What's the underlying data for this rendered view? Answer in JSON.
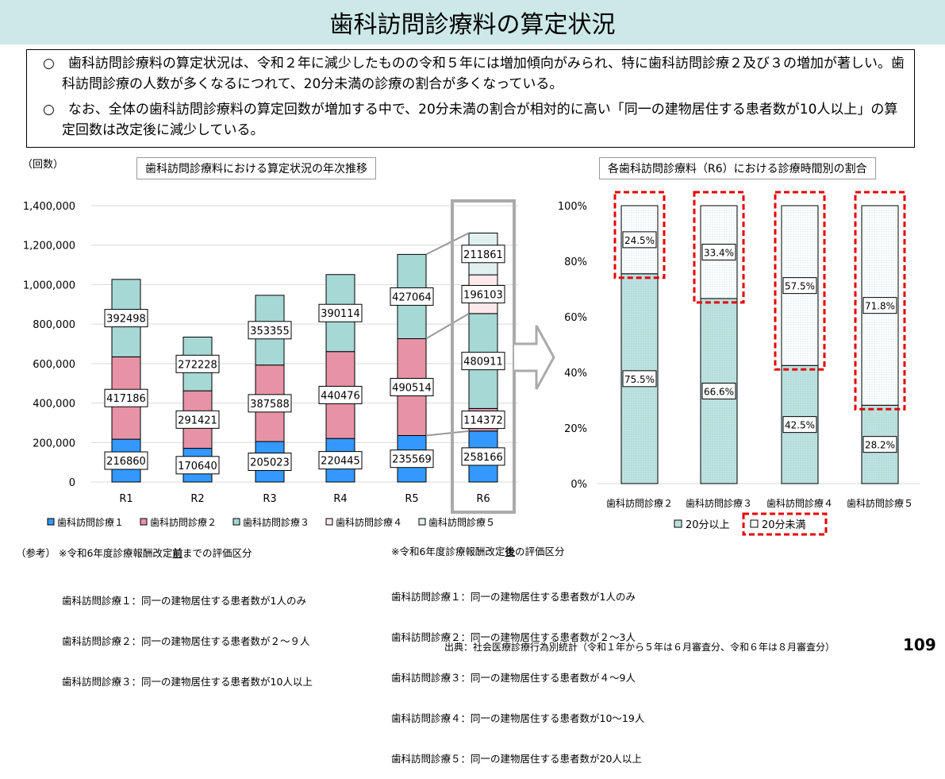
{
  "title": "歯科訪問診療料の算定状況",
  "summary": [
    "○　歯科訪問診療料の算定状況は、令和２年に減少したものの令和５年には増加傾向がみられ、特に歯科訪問診療２及び３の増加が著しい。歯科訪問診療の人数が多くなるにつれて、20分未満の診療の割合が多くなっている。",
    "○　なお、全体の歯科訪問診療料の算定回数が増加する中で、20分未満の割合が相対的に高い「同一の建物居住する患者数が10人以上」の算定回数は改定後に減少している。"
  ],
  "chart_data": [
    {
      "type": "bar",
      "stacked": true,
      "title": "歯科訪問診療料における算定状況の年次推移",
      "ylabel": "（回数）",
      "ylim": [
        0,
        1400000
      ],
      "yticks": [
        "0",
        "200,000",
        "400,000",
        "600,000",
        "800,000",
        "1,000,000",
        "1,200,000",
        "1,400,000"
      ],
      "grid": true,
      "legend": "bottom",
      "categories": [
        "R1",
        "R2",
        "R3",
        "R4",
        "R5",
        "R6"
      ],
      "series": [
        {
          "name": "歯科訪問診療１",
          "color": "#3399ff",
          "values": [
            216860,
            170640,
            205023,
            220445,
            235569,
            258166
          ]
        },
        {
          "name": "歯科訪問診療２",
          "color": "#e693a5",
          "values": [
            417186,
            291421,
            387588,
            440476,
            490514,
            114372
          ]
        },
        {
          "name": "歯科訪問診療３",
          "color": "#a6d8d5",
          "values": [
            392498,
            272228,
            353355,
            390114,
            427064,
            480911
          ]
        },
        {
          "name": "歯科訪問診療４",
          "color": "#fde8ea",
          "values": [
            null,
            null,
            null,
            null,
            null,
            196103
          ]
        },
        {
          "name": "歯科訪問診療５",
          "color": "#dff0ef",
          "values": [
            null,
            null,
            null,
            null,
            null,
            211861
          ]
        }
      ]
    },
    {
      "type": "bar",
      "stacked": true,
      "percent": true,
      "title": "各歯科訪問診療料（R6）における診療時間別の割合",
      "ylim": [
        0,
        100
      ],
      "yticks": [
        "0%",
        "20%",
        "40%",
        "60%",
        "80%",
        "100%"
      ],
      "legend": "bottom",
      "categories": [
        "歯科訪問診療２",
        "歯科訪問診療３",
        "歯科訪問診療４",
        "歯科訪問診療５"
      ],
      "series": [
        {
          "name": "20分以上",
          "color": "#bfe3e1",
          "values": [
            75.5,
            66.6,
            42.5,
            28.2
          ],
          "labels": [
            "75.5%",
            "66.6%",
            "42.5%",
            "28.2%"
          ]
        },
        {
          "name": "20分未満",
          "color": "#ffffff",
          "values": [
            24.5,
            33.4,
            57.5,
            71.8
          ],
          "labels": [
            "24.5%",
            "33.4%",
            "57.5%",
            "71.8%"
          ]
        }
      ],
      "highlight_color": "#e60000"
    }
  ],
  "notes": {
    "ref_label": "（参考）",
    "before_heading": [
      "※令和6年度診療報酬改定",
      "前",
      "までの評価区分"
    ],
    "before_items": [
      "歯科訪問診療１：同一の建物居住する患者数が1人のみ",
      "歯科訪問診療２：同一の建物居住する患者数が２～９人",
      "歯科訪問診療３：同一の建物居住する患者数が10人以上"
    ],
    "after_heading": [
      "※令和6年度診療報酬改定",
      "後",
      "の評価区分"
    ],
    "after_items": [
      "歯科訪問診療１：同一の建物居住する患者数が1人のみ",
      "歯科訪問診療２：同一の建物居住する患者数が２～3人",
      "歯科訪問診療３：同一の建物居住する患者数が４～9人",
      "歯科訪問診療４：同一の建物居住する患者数が10～19人",
      "歯科訪問診療５：同一の建物居住する患者数が20人以上"
    ],
    "source": "出典：社会医療診療行為別統計（令和１年から５年は６月審査分、令和６年は８月審査分）",
    "page_number": "109"
  }
}
